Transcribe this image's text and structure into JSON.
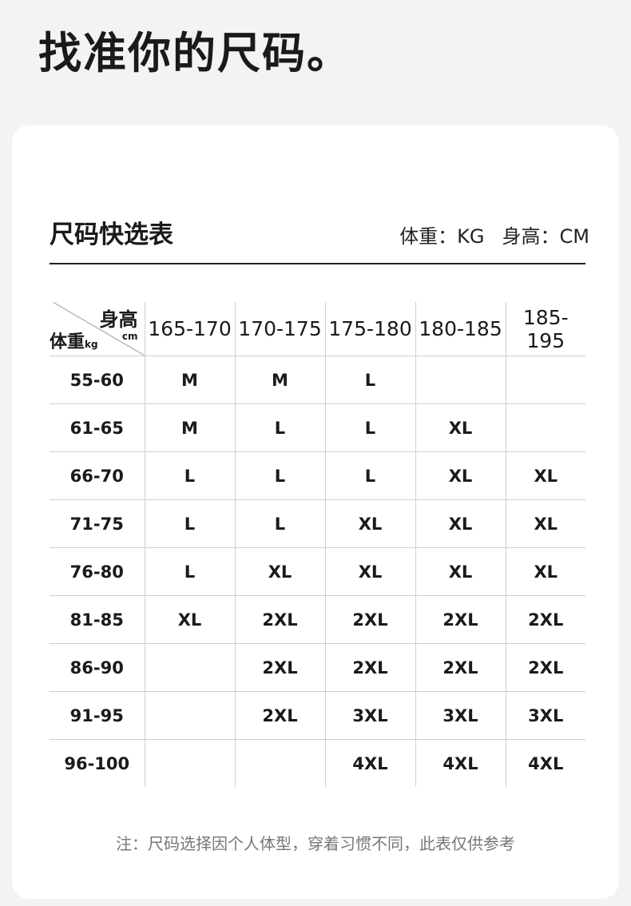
{
  "title": "找准你的尺码。",
  "subtitle": "尺码快选表",
  "units": {
    "weight": "体重：KG",
    "height": "身高：CM"
  },
  "corner": {
    "height_label": "身高",
    "height_unit": "cm",
    "weight_label": "体重",
    "weight_unit": "kg"
  },
  "columns": [
    "165-170",
    "170-175",
    "175-180",
    "180-185",
    "185-195"
  ],
  "rows": [
    {
      "weight": "55-60",
      "sizes": [
        "M",
        "M",
        "L",
        "",
        ""
      ]
    },
    {
      "weight": "61-65",
      "sizes": [
        "M",
        "L",
        "L",
        "XL",
        ""
      ]
    },
    {
      "weight": "66-70",
      "sizes": [
        "L",
        "L",
        "L",
        "XL",
        "XL"
      ]
    },
    {
      "weight": "71-75",
      "sizes": [
        "L",
        "L",
        "XL",
        "XL",
        "XL"
      ]
    },
    {
      "weight": "76-80",
      "sizes": [
        "L",
        "XL",
        "XL",
        "XL",
        "XL"
      ]
    },
    {
      "weight": "81-85",
      "sizes": [
        "XL",
        "2XL",
        "2XL",
        "2XL",
        "2XL"
      ]
    },
    {
      "weight": "86-90",
      "sizes": [
        "",
        "2XL",
        "2XL",
        "2XL",
        "2XL"
      ]
    },
    {
      "weight": "91-95",
      "sizes": [
        "",
        "2XL",
        "3XL",
        "3XL",
        "3XL"
      ]
    },
    {
      "weight": "96-100",
      "sizes": [
        "",
        "",
        "4XL",
        "4XL",
        "4XL"
      ]
    }
  ],
  "note": "注：尺码选择因个人体型，穿着习惯不同，此表仅供参考"
}
